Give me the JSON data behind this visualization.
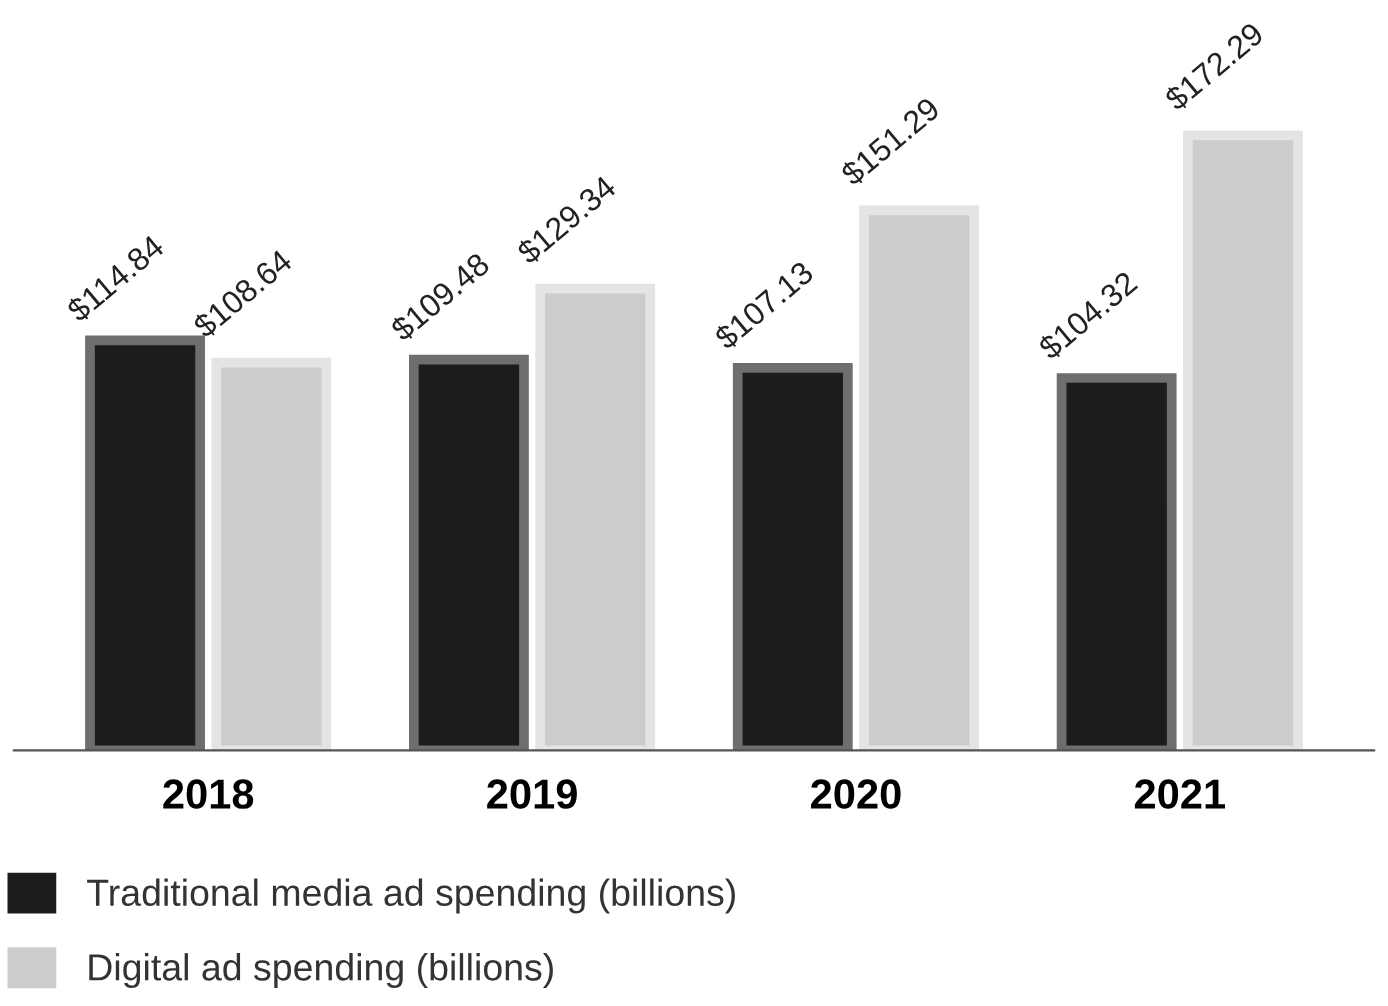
{
  "chart_data": {
    "type": "bar",
    "categories": [
      "2018",
      "2019",
      "2020",
      "2021"
    ],
    "series": [
      {
        "name": "Traditional media ad spending (billions)",
        "color": "#1c1c1c",
        "values": [
          114.84,
          109.48,
          107.13,
          104.32
        ],
        "value_labels": [
          "$114.84",
          "$109.48",
          "$107.13",
          "$104.32"
        ]
      },
      {
        "name": "Digital ad spending (billions)",
        "color": "#cccccc",
        "values": [
          108.64,
          129.34,
          151.29,
          172.29
        ],
        "value_labels": [
          "$108.64",
          "$129.34",
          "$151.29",
          "$172.29"
        ]
      }
    ],
    "legend": "bottom",
    "grid": false
  }
}
